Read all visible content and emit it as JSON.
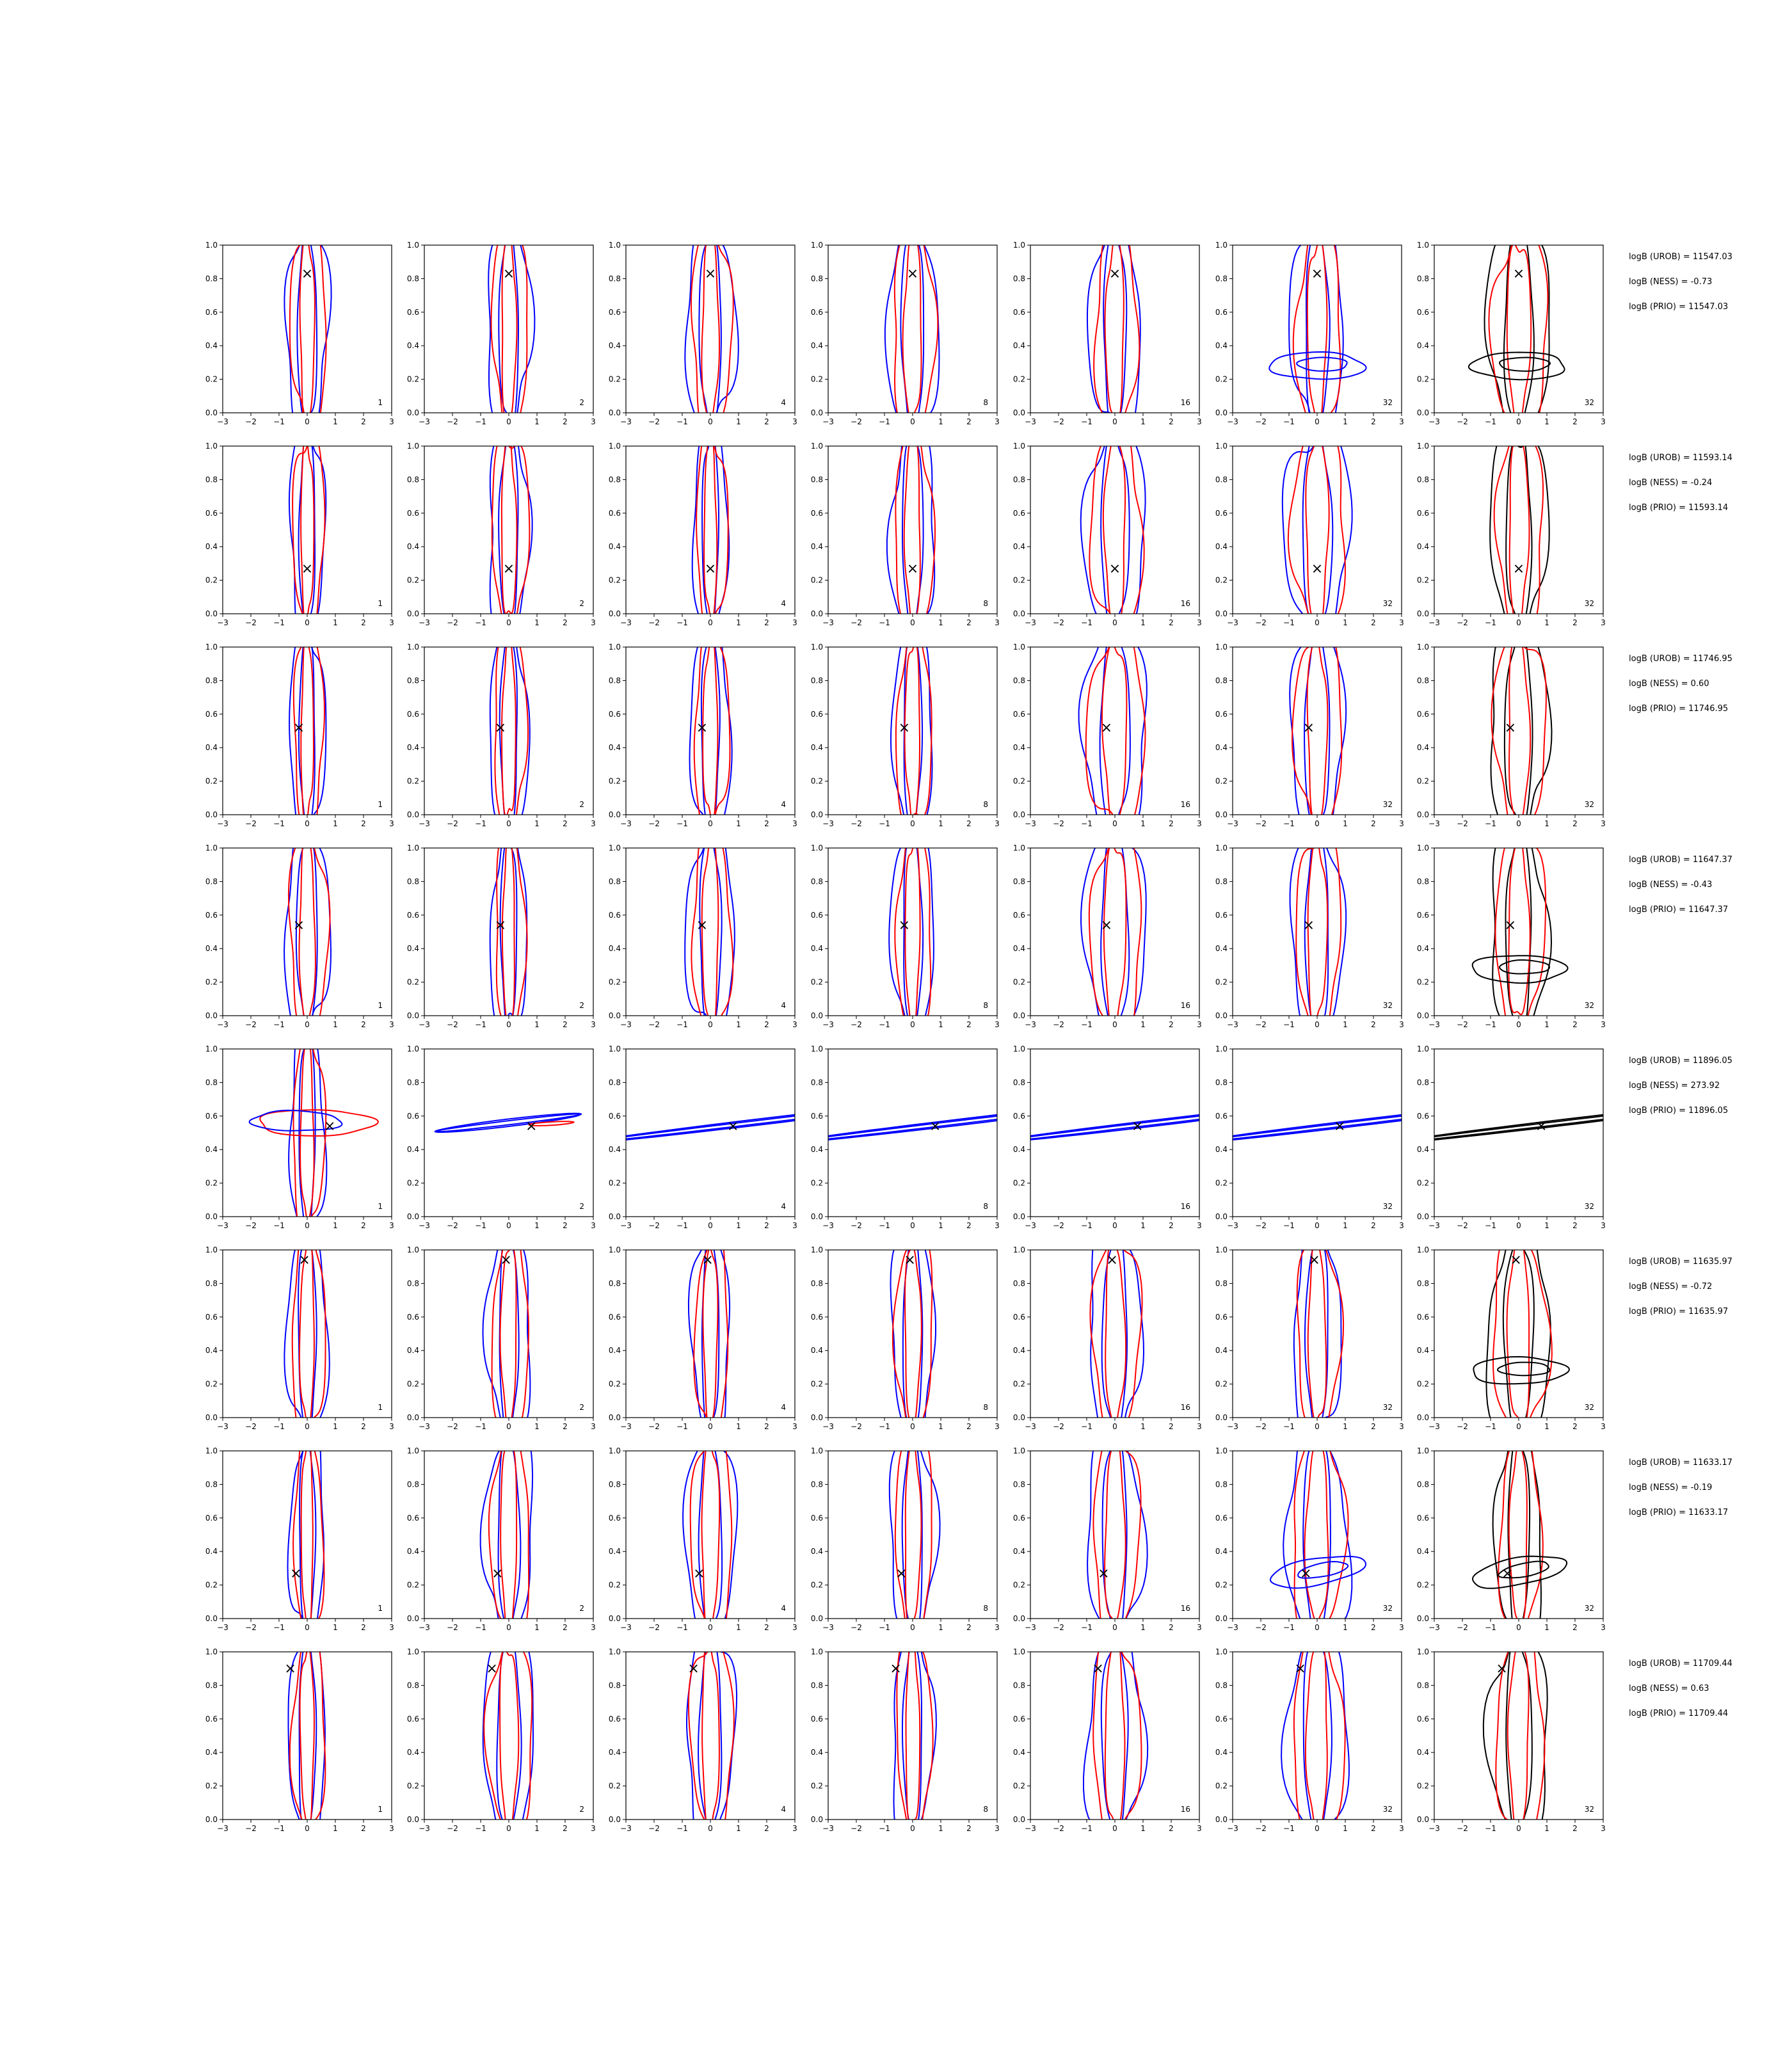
{
  "chart_data": {
    "type": "contour",
    "layout": {
      "rows": 8,
      "columns": 7
    },
    "axes": {
      "xlim": [
        -3,
        3
      ],
      "ylim": [
        0,
        1
      ],
      "xticks": [
        "−3",
        "−2",
        "−1",
        "0",
        "1",
        "2",
        "3"
      ],
      "yticks": [
        "0.0",
        "0.2",
        "0.4",
        "0.6",
        "0.8",
        "1.0"
      ]
    },
    "panel_labels": [
      "1",
      "2",
      "4",
      "8",
      "16",
      "32",
      "32"
    ],
    "series_colors": {
      "blue": "#0000ff",
      "red": "#ff0000",
      "black": "#000000"
    },
    "marker_symbol": "×",
    "rows": [
      {
        "marker": [
          0,
          0.83
        ],
        "mode": "vertical",
        "stats": [
          "logB (UROB) = 11547.03",
          "logB (NESS) = -0.73",
          "logB (PRIO) = 11547.03"
        ]
      },
      {
        "marker": [
          0,
          0.27
        ],
        "mode": "vertical",
        "stats": [
          "logB (UROB) = 11593.14",
          "logB (NESS) = -0.24",
          "logB (PRIO) = 11593.14"
        ]
      },
      {
        "marker": [
          -0.3,
          0.52
        ],
        "mode": "vertical",
        "stats": [
          "logB (UROB) = 11746.95",
          "logB (NESS) = 0.60",
          "logB (PRIO) = 11746.95"
        ]
      },
      {
        "marker": [
          -0.3,
          0.54
        ],
        "mode": "vertical",
        "stats": [
          "logB (UROB) = 11647.37",
          "logB (NESS) = -0.43",
          "logB (PRIO) = 11647.37"
        ]
      },
      {
        "marker": [
          0.8,
          0.54
        ],
        "mode": "linear",
        "stats": [
          "logB (UROB) = 11896.05",
          "logB (NESS) = 273.92",
          "logB (PRIO) = 11896.05"
        ]
      },
      {
        "marker": [
          -0.1,
          0.94
        ],
        "mode": "vertical",
        "stats": [
          "logB (UROB) = 11635.97",
          "logB (NESS) = -0.72",
          "logB (PRIO) = 11635.97"
        ]
      },
      {
        "marker": [
          -0.4,
          0.27
        ],
        "mode": "vertical",
        "stats": [
          "logB (UROB) = 11633.17",
          "logB (NESS) = -0.19",
          "logB (PRIO) = 11633.17"
        ]
      },
      {
        "marker": [
          -0.6,
          0.9
        ],
        "mode": "vertical",
        "stats": [
          "logB (UROB) = 11709.44",
          "logB (NESS) = 0.63",
          "logB (PRIO) = 11709.44"
        ]
      }
    ]
  }
}
